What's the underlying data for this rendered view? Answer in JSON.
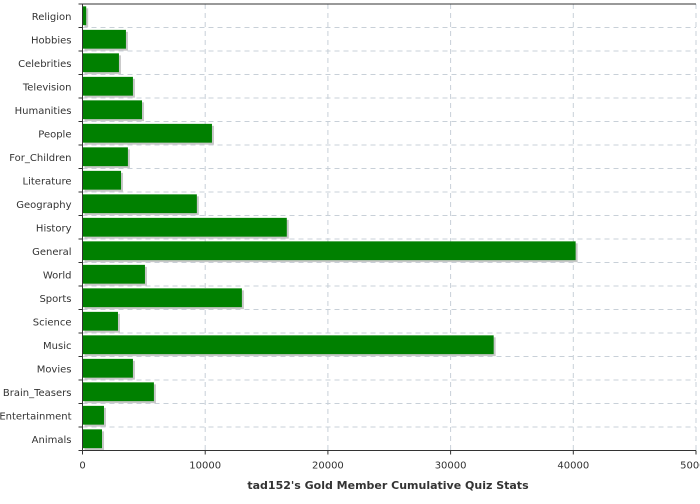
{
  "chart_data": {
    "type": "bar",
    "orientation": "horizontal",
    "title": "",
    "xlabel": "tad152's Gold Member Cumulative Quiz Stats",
    "ylabel": "",
    "xlim": [
      0,
      50000
    ],
    "xticks": [
      "0",
      "10000",
      "20000",
      "30000",
      "40000",
      "50000"
    ],
    "grid": true,
    "categories": [
      "Religion",
      "Hobbies",
      "Celebrities",
      "Television",
      "Humanities",
      "People",
      "For_Children",
      "Literature",
      "Geography",
      "History",
      "General",
      "World",
      "Sports",
      "Science",
      "Music",
      "Movies",
      "Brain_Teasers",
      "Entertainment",
      "Animals"
    ],
    "values": [
      300,
      3540,
      2970,
      4110,
      4850,
      10550,
      3700,
      3140,
      9320,
      16650,
      40190,
      5090,
      12990,
      2890,
      33510,
      4110,
      5820,
      1750,
      1590
    ],
    "bar_color": "#008000"
  }
}
